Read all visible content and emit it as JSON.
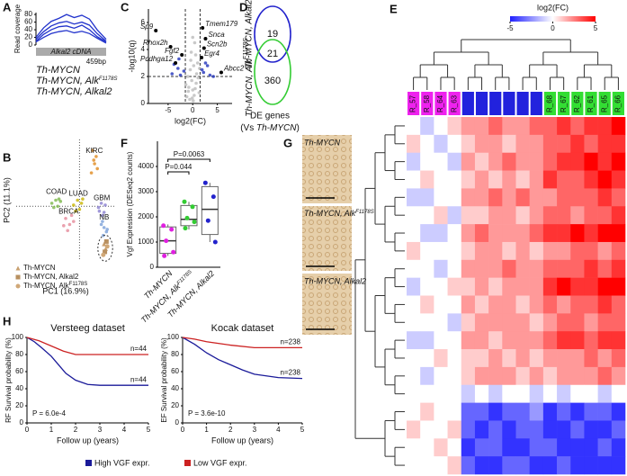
{
  "panels": [
    "A",
    "B",
    "C",
    "D",
    "E",
    "F",
    "G",
    "H"
  ],
  "genotypes": [
    {
      "name": "Th-MYCN",
      "color": "#e020e0"
    },
    {
      "name": "Th-MYCN, Alk",
      "sup": "F1178S",
      "color": "#33cc33"
    },
    {
      "name": "Th-MYCN, Alkal2",
      "color": "#2222cc"
    }
  ],
  "venn": {
    "sets": [
      {
        "label": "Th-MYCN, Alkal2",
        "color": "#2222cc"
      },
      {
        "label": "Th-MYCN, Alk",
        "sup": "F1178S",
        "color": "#33cc33"
      }
    ],
    "counts": [
      19,
      21,
      360
    ],
    "caption": [
      "DE genes",
      "(Vs ",
      "Th-MYCN",
      ")"
    ]
  },
  "histology": [
    {
      "label": "Th-MYCN"
    },
    {
      "label": "Th-MYCN, Alk",
      "sup": "F1178S"
    },
    {
      "label": "Th-MYCN, Alkal2"
    }
  ],
  "survival_legend": [
    "High VGF expr.",
    "Low VGF expr."
  ],
  "chart_data": [
    {
      "type": "line",
      "ylabel": "Read coverage",
      "annotations": [
        "Alkal2 cDNA",
        "459bp"
      ],
      "x": [
        0,
        50,
        100,
        150,
        200,
        250,
        300,
        350,
        400,
        459
      ],
      "xlim": [
        0,
        459
      ],
      "ylim": [
        0,
        85
      ],
      "yticks": [
        0,
        20,
        40,
        60,
        80
      ],
      "series": [
        {
          "color": "#2233cc",
          "values": [
            20,
            45,
            62,
            70,
            80,
            72,
            78,
            68,
            40,
            15
          ]
        },
        {
          "color": "#2233cc",
          "values": [
            15,
            35,
            50,
            58,
            62,
            55,
            60,
            52,
            30,
            10
          ]
        },
        {
          "color": "#2233cc",
          "values": [
            10,
            28,
            40,
            48,
            50,
            44,
            52,
            40,
            22,
            8
          ]
        },
        {
          "color": "#2233cc",
          "values": [
            8,
            20,
            30,
            35,
            38,
            32,
            36,
            30,
            18,
            5
          ]
        }
      ]
    },
    {
      "type": "scatter",
      "xlabel": "PC1 (16.9%)",
      "ylabel": "PC2 (11.1%)",
      "xlim": [
        -1.6,
        0.9
      ],
      "ylim": [
        -0.9,
        1.1
      ],
      "series": [
        {
          "name": "KIRC",
          "color": "#e08a1e",
          "x": [
            0.3,
            0.38,
            0.42,
            0.33,
            0.45,
            0.36
          ],
          "y": [
            0.55,
            0.7,
            0.82,
            0.92,
            0.62,
            0.76
          ]
        },
        {
          "name": "COAD",
          "color": "#7ab648",
          "x": [
            -0.7,
            -0.6,
            -0.55,
            -0.48,
            -0.65,
            -0.52
          ],
          "y": [
            0.05,
            0.1,
            0.0,
            0.08,
            -0.02,
            0.12
          ]
        },
        {
          "name": "LUAD",
          "color": "#c8b400",
          "x": [
            -0.15,
            -0.05,
            0.05,
            0.0,
            -0.1,
            0.08
          ],
          "y": [
            0.02,
            0.1,
            0.05,
            -0.05,
            -0.08,
            0.12
          ]
        },
        {
          "name": "BRCA",
          "color": "#e58a9a",
          "x": [
            -0.35,
            -0.25,
            -0.15,
            -0.3,
            -0.2,
            -0.4
          ],
          "y": [
            -0.2,
            -0.3,
            -0.25,
            -0.4,
            -0.15,
            -0.32
          ]
        },
        {
          "name": "GBM",
          "color": "#8a7fd0",
          "x": [
            0.48,
            0.55,
            0.62,
            0.58,
            0.5,
            0.65
          ],
          "y": [
            -0.02,
            0.05,
            -0.1,
            -0.15,
            -0.08,
            0.02
          ]
        },
        {
          "name": "NB",
          "color": "#7aa0d8",
          "x": [
            0.55,
            0.62,
            0.68,
            0.6,
            0.7,
            0.58
          ],
          "y": [
            -0.3,
            -0.35,
            -0.42,
            -0.48,
            -0.38,
            -0.25
          ]
        },
        {
          "name": "Th-MYCN",
          "marker": "triangle",
          "color": "#c8a070",
          "x": [
            0.62,
            0.66
          ],
          "y": [
            -0.62,
            -0.7
          ]
        },
        {
          "name": "Th-MYCN, Alkal2",
          "marker": "square",
          "color": "#b89060",
          "x": [
            0.68,
            0.64
          ],
          "y": [
            -0.58,
            -0.75
          ]
        },
        {
          "name": "Th-MYCN, Alk",
          "name_sup": "F1178S",
          "marker": "circle",
          "color": "#d0a878",
          "x": [
            0.7,
            0.6
          ],
          "y": [
            -0.66,
            -0.8
          ]
        }
      ]
    },
    {
      "type": "scatter",
      "xlabel": "log2(FC)",
      "ylabel": "-log10(q)",
      "xlim": [
        -9,
        8
      ],
      "ylim": [
        0,
        7
      ],
      "xticks": [
        -5,
        0,
        5
      ],
      "yticks": [
        0,
        2,
        4,
        6
      ],
      "vlines": [
        -1.5,
        1.5
      ],
      "hlines": [
        2
      ],
      "series": [
        {
          "color": "#bbbbbb",
          "x": [
            -1.2,
            -0.8,
            -0.5,
            -0.3,
            0,
            0.2,
            0.4,
            0.7,
            1.0,
            1.3,
            -1.0,
            -0.6,
            -0.2,
            0.3,
            0.8,
            1.1,
            -0.4,
            0.1,
            0.5,
            -0.9,
            0.6,
            -1.4,
            1.4,
            0.0,
            -0.1
          ],
          "y": [
            0.5,
            1.2,
            2.5,
            3.8,
            1.0,
            2.8,
            4.5,
            1.5,
            3.0,
            0.8,
            2.0,
            0.3,
            1.7,
            0.6,
            2.2,
            1.9,
            3.2,
            0.2,
            1.1,
            0.9,
            3.6,
            1.4,
            2.6,
            4.9,
            0.4
          ]
        },
        {
          "color": "#2233bb",
          "x": [
            -4.2,
            -3.0,
            -2.5,
            -1.8,
            -2.8,
            2.2,
            3.0,
            3.5,
            2.6,
            1.9,
            4.2,
            -3.8
          ],
          "y": [
            2.2,
            2.6,
            2.1,
            2.4,
            3.3,
            2.3,
            2.8,
            2.1,
            3.0,
            2.5,
            2.0,
            2.9
          ]
        }
      ],
      "genes": {
        "names": [
          "Sp9",
          "Rhox2h",
          "Pcdhga12",
          "Fgf2",
          "Tmem179",
          "Snca",
          "Scn2b",
          "Egr4",
          "Abcc2"
        ],
        "x": [
          -7.5,
          -4.5,
          -3.5,
          -2.2,
          2.0,
          2.6,
          2.3,
          1.8,
          5.8
        ],
        "y": [
          5.4,
          4.2,
          3.0,
          3.6,
          5.6,
          4.8,
          4.1,
          3.4,
          2.3
        ]
      }
    },
    {
      "type": "heatmap",
      "colorbar_label": "log2(FC)",
      "zlim": [
        -5,
        5
      ],
      "zticks": [
        -5,
        0,
        5
      ],
      "columns": [
        "R_57",
        "R_58",
        "R_64",
        "R_63",
        null,
        null,
        null,
        null,
        null,
        null,
        "R_68",
        "R_67",
        "R_62",
        "R_61",
        "R_65",
        "R_66"
      ],
      "column_colors": [
        "#ee22ee",
        "#ee22ee",
        "#ee22ee",
        "#ee22ee",
        "#2222dd",
        "#2222dd",
        "#2222dd",
        "#2222dd",
        "#2222dd",
        "#2222dd",
        "#33dd33",
        "#33dd33",
        "#33dd33",
        "#33dd33",
        "#33dd33",
        "#33dd33"
      ],
      "matrix": [
        [
          0,
          -1,
          0,
          1,
          2,
          2,
          3,
          2,
          2,
          3,
          3,
          4,
          3,
          4,
          4,
          5
        ],
        [
          1,
          0,
          -1,
          0,
          1,
          2,
          2,
          1,
          2,
          2,
          3,
          3,
          4,
          3,
          4,
          4
        ],
        [
          -1,
          0,
          0,
          -1,
          2,
          1,
          2,
          3,
          2,
          2,
          3,
          4,
          4,
          5,
          4,
          5
        ],
        [
          0,
          1,
          0,
          0,
          1,
          2,
          1,
          2,
          1,
          2,
          4,
          3,
          3,
          4,
          5,
          4
        ],
        [
          -1,
          -1,
          0,
          0,
          2,
          2,
          3,
          2,
          3,
          2,
          2,
          3,
          3,
          3,
          4,
          3
        ],
        [
          0,
          0,
          1,
          -1,
          1,
          1,
          2,
          2,
          1,
          2,
          3,
          3,
          2,
          3,
          3,
          4
        ],
        [
          0,
          -1,
          -1,
          0,
          2,
          3,
          2,
          2,
          2,
          3,
          4,
          4,
          5,
          4,
          5,
          5
        ],
        [
          1,
          0,
          0,
          0,
          1,
          2,
          2,
          1,
          2,
          1,
          2,
          2,
          3,
          3,
          2,
          3
        ],
        [
          0,
          0,
          -1,
          0,
          2,
          2,
          2,
          3,
          2,
          2,
          3,
          3,
          3,
          4,
          3,
          4
        ],
        [
          -1,
          0,
          0,
          1,
          1,
          2,
          1,
          2,
          2,
          2,
          4,
          5,
          4,
          4,
          5,
          5
        ],
        [
          0,
          1,
          0,
          0,
          2,
          1,
          2,
          2,
          1,
          2,
          3,
          2,
          3,
          3,
          4,
          3
        ],
        [
          0,
          0,
          0,
          -1,
          1,
          2,
          2,
          2,
          2,
          1,
          2,
          3,
          3,
          2,
          3,
          3
        ],
        [
          -1,
          -1,
          0,
          0,
          2,
          2,
          1,
          2,
          2,
          2,
          3,
          4,
          4,
          3,
          4,
          4
        ],
        [
          0,
          0,
          1,
          0,
          1,
          1,
          2,
          1,
          2,
          1,
          2,
          2,
          2,
          3,
          2,
          3
        ],
        [
          0,
          -1,
          0,
          0,
          1,
          2,
          2,
          2,
          1,
          2,
          1,
          2,
          2,
          2,
          3,
          2
        ],
        [
          0,
          0,
          0,
          0,
          -1,
          0,
          -1,
          0,
          0,
          -1,
          0,
          -1,
          0,
          0,
          -1,
          0
        ],
        [
          0,
          1,
          0,
          0,
          -3,
          -3,
          -4,
          -3,
          -3,
          -2,
          -4,
          -3,
          -4,
          -3,
          -3,
          -4
        ],
        [
          1,
          0,
          0,
          1,
          -3,
          -4,
          -3,
          -4,
          -3,
          -3,
          -4,
          -4,
          -3,
          -4,
          -4,
          -3
        ],
        [
          0,
          0,
          1,
          0,
          -4,
          -3,
          -3,
          -4,
          -4,
          -3,
          -3,
          -4,
          -4,
          -4,
          -3,
          -4
        ],
        [
          0,
          0,
          0,
          1,
          -3,
          -4,
          -4,
          -3,
          -3,
          -4,
          -4,
          -3,
          -4,
          -4,
          -4,
          -4
        ]
      ]
    },
    {
      "type": "box",
      "ylabel": "Vgf Expression (DESeq2 counts)",
      "ylim": [
        0,
        5000
      ],
      "yticks": [
        0,
        1000,
        2000,
        3000,
        4000
      ],
      "categories": [
        "Th-MYCN",
        "Th-MYCN, Alk",
        "Th-MYCN, Alkal2"
      ],
      "category_sups": [
        null,
        "F1178S",
        null
      ],
      "colors": [
        "#e020e0",
        "#33cc33",
        "#2222cc"
      ],
      "boxes": [
        {
          "whislo": 450,
          "q1": 550,
          "med": 1050,
          "q3": 1600,
          "whishi": 1700
        },
        {
          "whislo": 1500,
          "q1": 1650,
          "med": 1900,
          "q3": 2450,
          "whishi": 2600
        },
        {
          "whislo": 1000,
          "q1": 1300,
          "med": 2300,
          "q3": 3200,
          "whishi": 3350
        }
      ],
      "points": [
        [
          1650,
          1500,
          1050,
          600,
          450
        ],
        [
          2600,
          2400,
          1950,
          1800,
          1550
        ],
        [
          3350,
          2800,
          1850,
          1000
        ]
      ],
      "p_values": [
        "P=0.044",
        "P=0.0063"
      ]
    },
    {
      "type": "line",
      "title": "Versteeg dataset",
      "ylabel": "RF Survival probability (%)",
      "xlabel": "Follow up (years)",
      "p_label": "P = 6.0e-4",
      "xlim": [
        0,
        5
      ],
      "ylim": [
        0,
        100
      ],
      "xticks": [
        0,
        1,
        2,
        3,
        4,
        5
      ],
      "yticks": [
        0,
        20,
        40,
        60,
        80,
        100
      ],
      "series": [
        {
          "color": "#1a1a99",
          "end_label": "n=44",
          "x": [
            0,
            0.3,
            0.6,
            1,
            1.3,
            1.6,
            2,
            2.5,
            3,
            5
          ],
          "values": [
            100,
            95,
            88,
            78,
            68,
            58,
            50,
            45,
            44,
            44
          ]
        },
        {
          "color": "#cc2222",
          "end_label": "n=44",
          "x": [
            0,
            0.5,
            1,
            1.5,
            2,
            5
          ],
          "values": [
            100,
            96,
            90,
            84,
            80,
            80
          ]
        }
      ]
    },
    {
      "type": "line",
      "title": "Kocak dataset",
      "ylabel": "EF Survival probability (%)",
      "xlabel": "Follow up (years)",
      "p_label": "P = 3.6e-10",
      "xlim": [
        0,
        5
      ],
      "ylim": [
        0,
        100
      ],
      "xticks": [
        0,
        1,
        2,
        3,
        4,
        5
      ],
      "yticks": [
        0,
        20,
        40,
        60,
        80,
        100
      ],
      "series": [
        {
          "color": "#1a1a99",
          "end_label": "n=238",
          "x": [
            0,
            0.5,
            1,
            1.5,
            2,
            2.5,
            3,
            4,
            5
          ],
          "values": [
            100,
            92,
            82,
            74,
            68,
            62,
            57,
            53,
            52
          ]
        },
        {
          "color": "#cc2222",
          "end_label": "n=238",
          "x": [
            0,
            0.5,
            1,
            2,
            3,
            5
          ],
          "values": [
            100,
            98,
            95,
            91,
            88,
            88
          ]
        }
      ]
    }
  ]
}
